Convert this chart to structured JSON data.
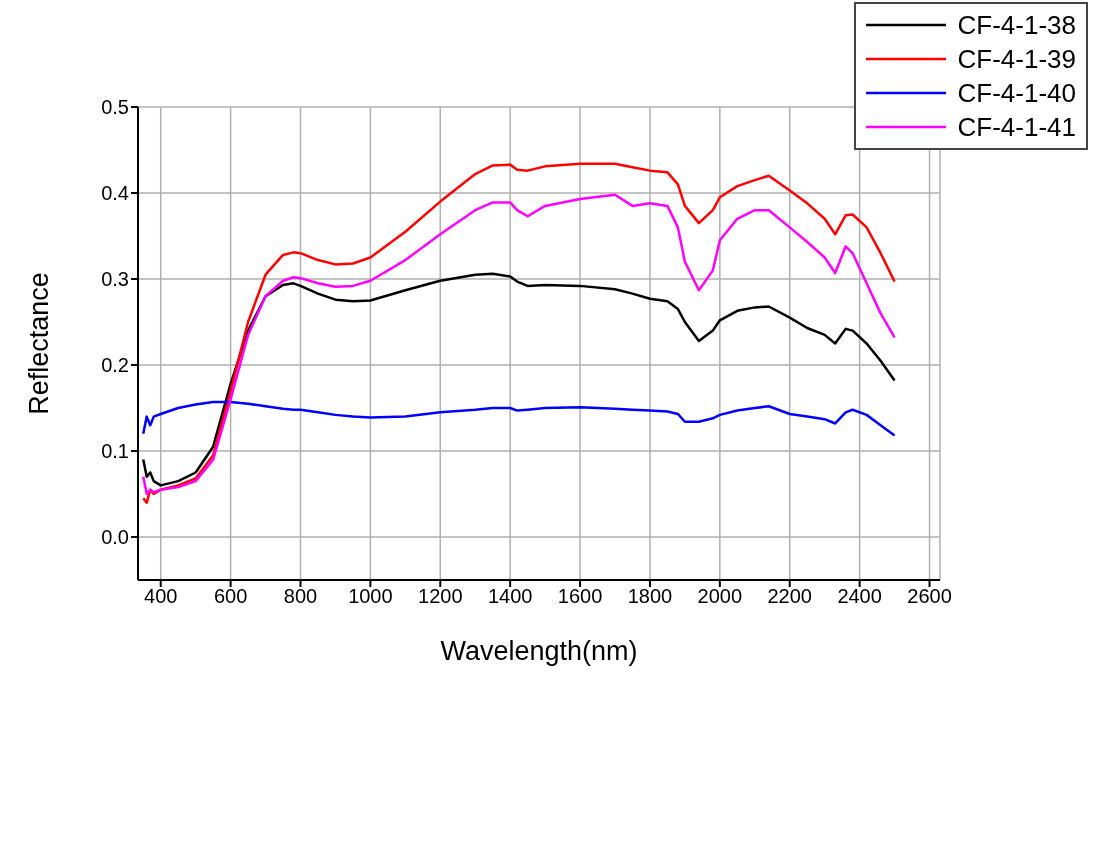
{
  "chart_data": {
    "type": "line",
    "xlabel": "Wavelength(nm)",
    "ylabel": "Reflectance",
    "x": [
      350,
      360,
      370,
      380,
      400,
      450,
      500,
      550,
      600,
      650,
      700,
      750,
      780,
      800,
      850,
      900,
      950,
      1000,
      1100,
      1200,
      1300,
      1350,
      1400,
      1420,
      1450,
      1500,
      1600,
      1700,
      1750,
      1800,
      1850,
      1880,
      1900,
      1940,
      1980,
      2000,
      2050,
      2100,
      2140,
      2200,
      2250,
      2300,
      2330,
      2360,
      2380,
      2420,
      2460,
      2500
    ],
    "series": [
      {
        "name": "CF-4-1-38",
        "color": "#000000",
        "values": [
          0.09,
          0.07,
          0.075,
          0.065,
          0.06,
          0.065,
          0.075,
          0.105,
          0.178,
          0.24,
          0.28,
          0.293,
          0.295,
          0.292,
          0.283,
          0.276,
          0.274,
          0.275,
          0.287,
          0.298,
          0.305,
          0.306,
          0.303,
          0.297,
          0.292,
          0.293,
          0.292,
          0.288,
          0.283,
          0.277,
          0.274,
          0.265,
          0.25,
          0.228,
          0.24,
          0.252,
          0.263,
          0.267,
          0.268,
          0.255,
          0.243,
          0.235,
          0.225,
          0.242,
          0.24,
          0.225,
          0.205,
          0.182
        ]
      },
      {
        "name": "CF-4-1-39",
        "color": "#ff0000",
        "values": [
          0.045,
          0.04,
          0.055,
          0.05,
          0.055,
          0.06,
          0.068,
          0.095,
          0.17,
          0.25,
          0.305,
          0.328,
          0.331,
          0.33,
          0.322,
          0.317,
          0.318,
          0.325,
          0.355,
          0.39,
          0.422,
          0.432,
          0.433,
          0.427,
          0.426,
          0.431,
          0.434,
          0.434,
          0.43,
          0.426,
          0.424,
          0.41,
          0.385,
          0.365,
          0.38,
          0.395,
          0.408,
          0.415,
          0.42,
          0.403,
          0.388,
          0.37,
          0.352,
          0.374,
          0.375,
          0.36,
          0.33,
          0.297
        ]
      },
      {
        "name": "CF-4-1-40",
        "color": "#0000ff",
        "values": [
          0.12,
          0.14,
          0.13,
          0.14,
          0.143,
          0.15,
          0.154,
          0.157,
          0.157,
          0.155,
          0.152,
          0.149,
          0.148,
          0.148,
          0.145,
          0.142,
          0.14,
          0.139,
          0.14,
          0.145,
          0.148,
          0.15,
          0.15,
          0.147,
          0.148,
          0.15,
          0.151,
          0.149,
          0.148,
          0.147,
          0.146,
          0.143,
          0.134,
          0.134,
          0.138,
          0.142,
          0.147,
          0.15,
          0.152,
          0.143,
          0.14,
          0.137,
          0.132,
          0.145,
          0.148,
          0.142,
          0.13,
          0.118
        ]
      },
      {
        "name": "CF-4-1-41",
        "color": "#ff00ff",
        "values": [
          0.07,
          0.05,
          0.055,
          0.052,
          0.055,
          0.058,
          0.065,
          0.09,
          0.16,
          0.235,
          0.28,
          0.298,
          0.302,
          0.301,
          0.295,
          0.291,
          0.292,
          0.298,
          0.322,
          0.352,
          0.38,
          0.389,
          0.389,
          0.38,
          0.373,
          0.385,
          0.393,
          0.398,
          0.385,
          0.388,
          0.385,
          0.36,
          0.32,
          0.287,
          0.31,
          0.345,
          0.37,
          0.38,
          0.38,
          0.36,
          0.343,
          0.325,
          0.307,
          0.338,
          0.33,
          0.295,
          0.26,
          0.232
        ]
      }
    ],
    "xlim": [
      335,
      2630
    ],
    "xticks": [
      400,
      600,
      800,
      1000,
      1200,
      1400,
      1600,
      1800,
      2000,
      2200,
      2400,
      2600
    ],
    "ylim": [
      -0.05,
      0.5
    ],
    "yticks": [
      {
        "value": 0,
        "label": "0.0"
      },
      {
        "value": 0.1,
        "label": "0.1"
      },
      {
        "value": 0.2,
        "label": "0.2"
      },
      {
        "value": 0.3,
        "label": "0.3"
      },
      {
        "value": 0.4,
        "label": "0.4"
      },
      {
        "value": 0.5,
        "label": "0.5"
      }
    ],
    "grid": true,
    "legend": "top right",
    "marker": "none",
    "line_style": "solid"
  }
}
